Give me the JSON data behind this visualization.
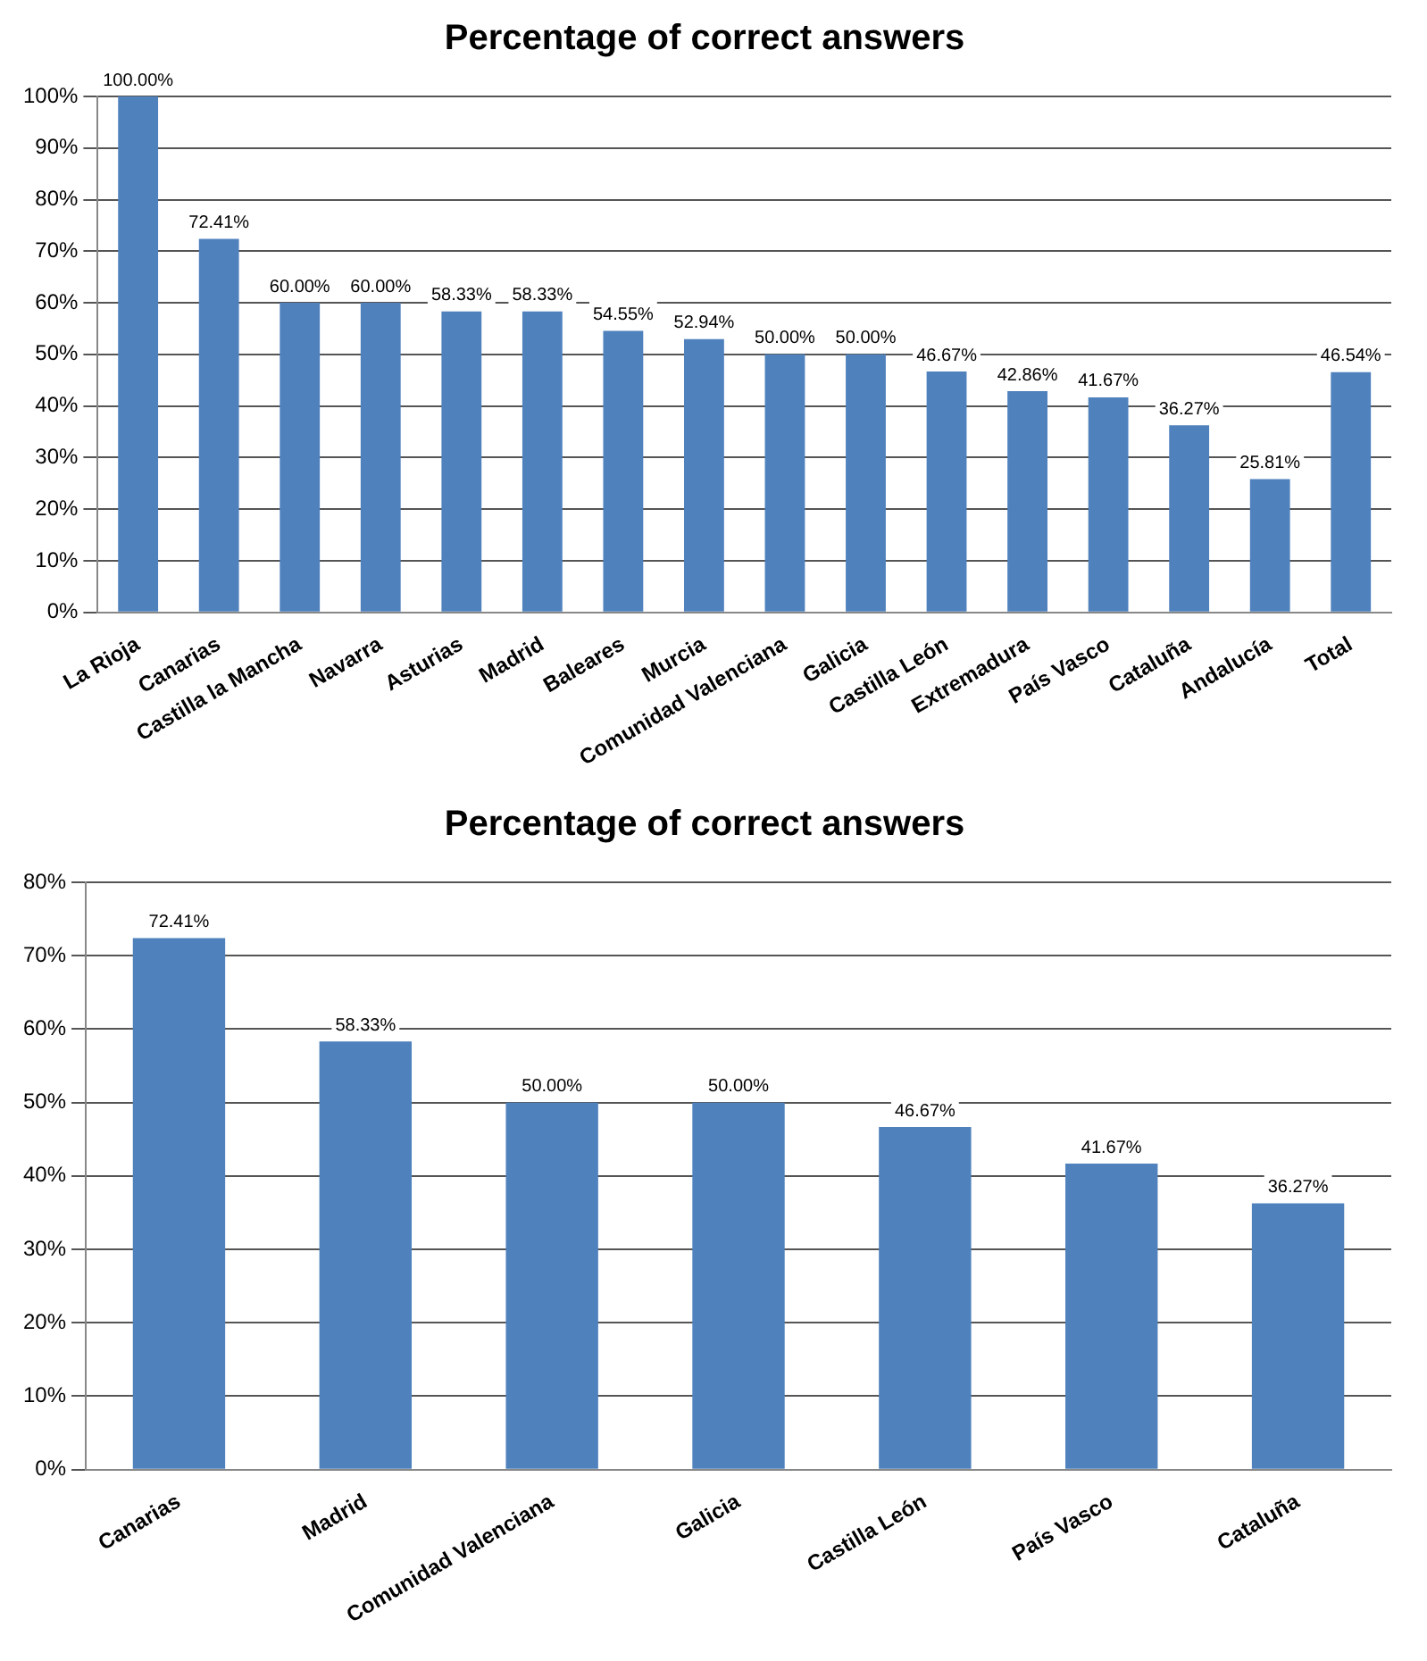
{
  "chart_data": [
    {
      "type": "bar",
      "title": "Percentage of correct answers",
      "categories": [
        "La Rioja",
        "Canarias",
        "Castilla la Mancha",
        "Navarra",
        "Asturias",
        "Madrid",
        "Baleares",
        "Murcia",
        "Comunidad Valenciana",
        "Galicia",
        "Castilla León",
        "Extremadura",
        "País Vasco",
        "Cataluña",
        "Andalucía",
        "Total"
      ],
      "values": [
        100,
        72.41,
        60,
        60,
        58.33,
        58.33,
        54.55,
        52.94,
        50,
        50,
        46.67,
        42.86,
        41.67,
        36.27,
        25.81,
        46.54
      ],
      "value_labels": [
        "100.00%",
        "72.41%",
        "60.00%",
        "60.00%",
        "58.33%",
        "58.33%",
        "54.55%",
        "52.94%",
        "50.00%",
        "50.00%",
        "46.67%",
        "42.86%",
        "41.67%",
        "36.27%",
        "25.81%",
        "46.54%"
      ],
      "color": "#4f81bd",
      "ylim": [
        0,
        100
      ],
      "yticks": [
        {
          "value": 0,
          "label": "0%"
        },
        {
          "value": 10,
          "label": "10%"
        },
        {
          "value": 20,
          "label": "20%"
        },
        {
          "value": 30,
          "label": "30%"
        },
        {
          "value": 40,
          "label": "40%"
        },
        {
          "value": 50,
          "label": "50%"
        },
        {
          "value": 60,
          "label": "60%"
        },
        {
          "value": 70,
          "label": "70%"
        },
        {
          "value": 80,
          "label": "80%"
        },
        {
          "value": 90,
          "label": "90%"
        },
        {
          "value": 100,
          "label": "100%"
        }
      ],
      "grid": "y",
      "legend": false
    },
    {
      "type": "bar",
      "title": "Percentage of correct answers",
      "categories": [
        "Canarias",
        "Madrid",
        "Comunidad Valenciana",
        "Galicia",
        "Castilla León",
        "País Vasco",
        "Cataluña"
      ],
      "values": [
        72.41,
        58.33,
        50,
        50,
        46.67,
        41.67,
        36.27
      ],
      "value_labels": [
        "72.41%",
        "58.33%",
        "50.00%",
        "50.00%",
        "46.67%",
        "41.67%",
        "36.27%"
      ],
      "color": "#4f81bd",
      "ylim": [
        0,
        80
      ],
      "yticks": [
        {
          "value": 0,
          "label": "0%"
        },
        {
          "value": 10,
          "label": "10%"
        },
        {
          "value": 20,
          "label": "20%"
        },
        {
          "value": 30,
          "label": "30%"
        },
        {
          "value": 40,
          "label": "40%"
        },
        {
          "value": 50,
          "label": "50%"
        },
        {
          "value": 60,
          "label": "60%"
        },
        {
          "value": 70,
          "label": "70%"
        },
        {
          "value": 80,
          "label": "80%"
        }
      ],
      "grid": "y",
      "legend": false
    }
  ]
}
